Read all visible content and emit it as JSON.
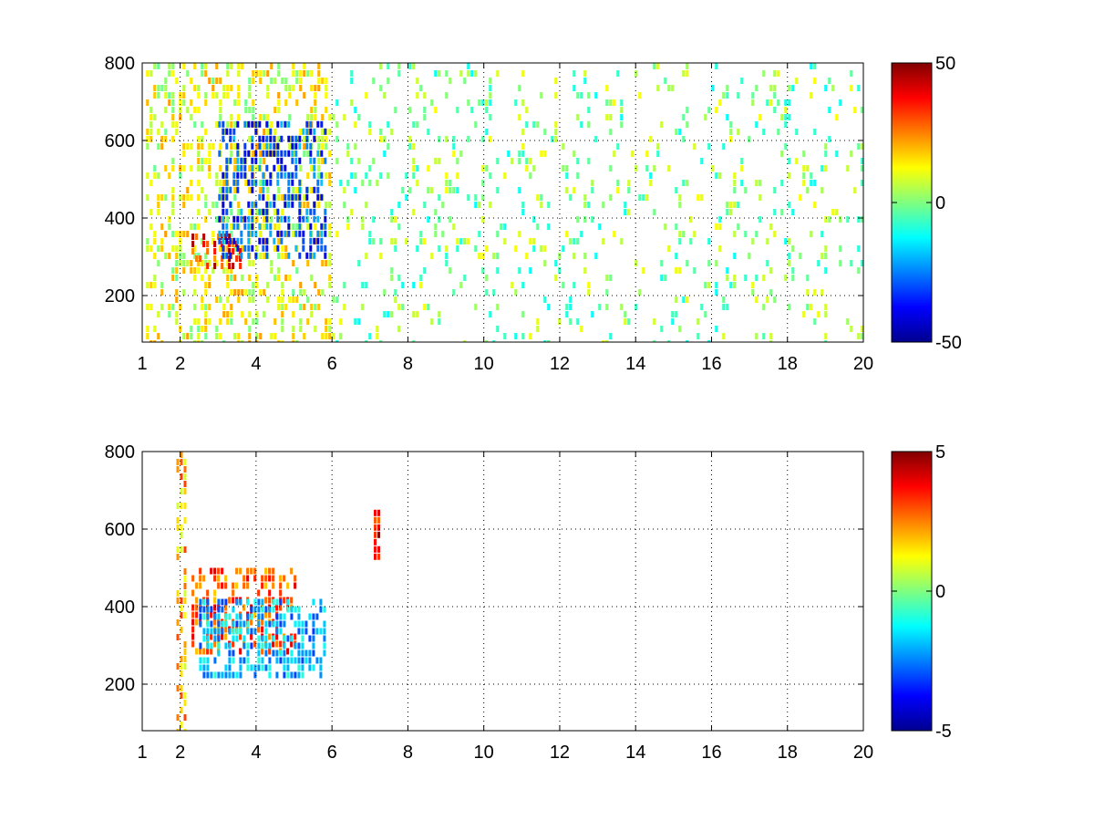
{
  "colors": {
    "background": "#ffffff",
    "axis": "#000000",
    "grid": "#000000",
    "colormap": "jet"
  },
  "chart_data": [
    {
      "type": "heatmap",
      "title": "",
      "xlabel": "",
      "ylabel": "",
      "colormap": "jet",
      "grid": true,
      "grid_style": "dotted",
      "legend": "colorbar-right",
      "xlim": [
        1,
        20
      ],
      "ylim": [
        80,
        800
      ],
      "xticks": [
        1,
        2,
        4,
        6,
        8,
        10,
        12,
        14,
        16,
        18,
        20
      ],
      "xtick_labels": [
        "1",
        "2",
        "4",
        "6",
        "8",
        "10",
        "12",
        "14",
        "16",
        "18",
        "20"
      ],
      "yticks": [
        200,
        400,
        600,
        800
      ],
      "ytick_labels": [
        "200",
        "400",
        "600",
        "800"
      ],
      "color_range": [
        -50,
        50
      ],
      "colorbar_ticks": [
        -50,
        0,
        50
      ],
      "colorbar_tick_labels": [
        "-50",
        "0",
        "50"
      ],
      "features": [
        {
          "x_range": [
            1.1,
            6.0
          ],
          "y_range": [
            80,
            800
          ],
          "value": 10,
          "density": 0.35,
          "note": "scattered yellow/green cells"
        },
        {
          "x_range": [
            2.3,
            3.6
          ],
          "y_range": [
            270,
            360
          ],
          "value": 35,
          "density": 0.6
        },
        {
          "x_range": [
            3.0,
            5.8
          ],
          "y_range": [
            300,
            650
          ],
          "value": -30,
          "density": 0.5
        },
        {
          "x_range": [
            6.0,
            20.0
          ],
          "y_range": [
            80,
            800
          ],
          "value": 0,
          "density": 0.12
        }
      ]
    },
    {
      "type": "heatmap",
      "title": "",
      "xlabel": "",
      "ylabel": "",
      "colormap": "jet",
      "grid": true,
      "grid_style": "dotted",
      "legend": "colorbar-right",
      "xlim": [
        1,
        20
      ],
      "ylim": [
        80,
        800
      ],
      "xticks": [
        1,
        2,
        4,
        6,
        8,
        10,
        12,
        14,
        16,
        18,
        20
      ],
      "xtick_labels": [
        "1",
        "2",
        "4",
        "6",
        "8",
        "10",
        "12",
        "14",
        "16",
        "18",
        "20"
      ],
      "yticks": [
        200,
        400,
        600,
        800
      ],
      "ytick_labels": [
        "200",
        "400",
        "600",
        "800"
      ],
      "color_range": [
        -5,
        5
      ],
      "colorbar_ticks": [
        -5,
        0,
        5
      ],
      "colorbar_tick_labels": [
        "-5",
        "0",
        "5"
      ],
      "features": [
        {
          "x_range": [
            2.3,
            5.0
          ],
          "y_range": [
            280,
            500
          ],
          "value": 3,
          "density": 0.5
        },
        {
          "x_range": [
            2.5,
            5.8
          ],
          "y_range": [
            230,
            420
          ],
          "value": -2,
          "density": 0.55
        },
        {
          "x_range": [
            7.1,
            7.2
          ],
          "y_range": [
            520,
            650
          ],
          "value": 4,
          "density": 0.8
        },
        {
          "x_range": [
            1.9,
            2.1
          ],
          "y_range": [
            80,
            800
          ],
          "value": 2,
          "density": 0.5
        }
      ]
    }
  ]
}
